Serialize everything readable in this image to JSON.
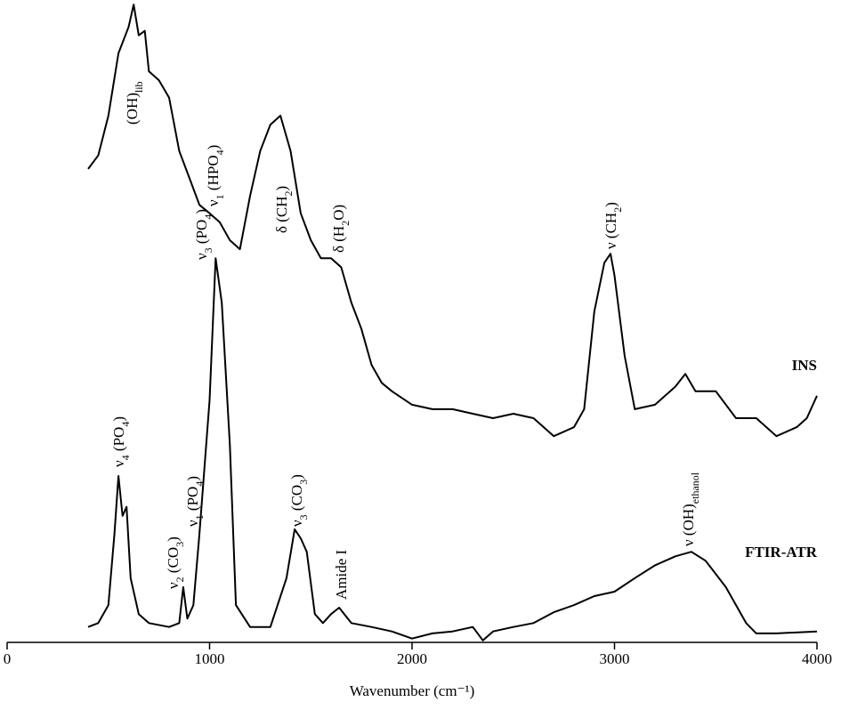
{
  "chart_data": {
    "type": "line",
    "xlabel": "Wavenumber (cm⁻¹)",
    "xlim": [
      0,
      4000
    ],
    "xticks": [
      0,
      1000,
      2000,
      3000,
      4000
    ],
    "ylim": [
      0,
      100
    ],
    "series": [
      {
        "name": "INS",
        "color": "#000000",
        "x": [
          400,
          450,
          500,
          550,
          600,
          625,
          650,
          680,
          700,
          750,
          800,
          850,
          900,
          950,
          1000,
          1050,
          1100,
          1150,
          1200,
          1250,
          1300,
          1350,
          1400,
          1450,
          1500,
          1550,
          1600,
          1650,
          1700,
          1750,
          1800,
          1850,
          1900,
          2000,
          2100,
          2200,
          2300,
          2400,
          2500,
          2600,
          2700,
          2800,
          2850,
          2900,
          2950,
          2980,
          3000,
          3050,
          3100,
          3200,
          3300,
          3350,
          3400,
          3500,
          3600,
          3700,
          3800,
          3900,
          3950,
          4000
        ],
        "values": [
          73.7,
          75.8,
          82.0,
          91.7,
          95.8,
          99.3,
          94.5,
          95.2,
          88.9,
          87.5,
          84.8,
          76.5,
          72.3,
          68.1,
          66.8,
          65.4,
          62.6,
          61.2,
          69.5,
          76.5,
          80.6,
          82.0,
          76.5,
          66.8,
          62.6,
          59.8,
          59.8,
          58.4,
          52.9,
          48.8,
          43.2,
          40.4,
          39.1,
          37.0,
          36.3,
          36.3,
          35.6,
          34.9,
          35.6,
          34.9,
          32.1,
          33.5,
          36.3,
          51.5,
          59.1,
          60.5,
          57.1,
          44.6,
          36.3,
          37.0,
          39.8,
          41.8,
          39.1,
          39.1,
          34.9,
          34.9,
          32.1,
          33.5,
          34.9,
          38.4
        ]
      },
      {
        "name": "FTIR-ATR",
        "color": "#000000",
        "x": [
          400,
          450,
          500,
          530,
          550,
          570,
          590,
          610,
          650,
          700,
          800,
          850,
          870,
          890,
          920,
          950,
          1000,
          1030,
          1060,
          1100,
          1130,
          1200,
          1300,
          1380,
          1420,
          1450,
          1480,
          1520,
          1560,
          1600,
          1640,
          1700,
          1800,
          1900,
          2000,
          2100,
          2200,
          2300,
          2350,
          2400,
          2500,
          2600,
          2700,
          2800,
          2900,
          3000,
          3100,
          3200,
          3300,
          3380,
          3450,
          3550,
          3650,
          3700,
          3800,
          4000
        ],
        "values": [
          2.4,
          3.0,
          5.8,
          16.9,
          25.9,
          19.7,
          21.1,
          10.0,
          4.4,
          3.0,
          2.4,
          3.0,
          8.6,
          3.7,
          5.8,
          16.9,
          37.7,
          59.8,
          52.9,
          30.7,
          5.8,
          2.4,
          2.4,
          10.0,
          17.6,
          16.2,
          14.1,
          4.4,
          3.0,
          4.4,
          5.4,
          3.0,
          2.4,
          1.7,
          0.6,
          1.4,
          1.7,
          2.4,
          0.3,
          1.7,
          2.4,
          3.0,
          4.7,
          5.8,
          7.2,
          7.9,
          10.0,
          12.0,
          13.4,
          14.1,
          12.7,
          8.6,
          3.0,
          1.4,
          1.4,
          1.7
        ]
      }
    ],
    "annotations": [
      [
        "(OH)",
        "lib"
      ],
      [
        "ν",
        "1",
        " (HPO",
        "4",
        ")"
      ],
      [
        "δ (CH",
        "2",
        ")"
      ],
      [
        "δ (H",
        "2",
        "O)"
      ],
      [
        "ν (CH",
        "2",
        ")"
      ],
      [
        "ν",
        "3",
        " (PO",
        "4",
        ")"
      ],
      [
        "ν",
        "4",
        " (PO",
        "4",
        ")"
      ],
      [
        "ν",
        "2",
        " (CO",
        "3",
        ")"
      ],
      [
        "ν",
        "1",
        " (PO",
        "4",
        ")"
      ],
      [
        "ν",
        "3",
        " (CO",
        "3",
        ")"
      ],
      [
        "Amide I"
      ],
      [
        "ν (OH)",
        "ethanol"
      ]
    ]
  }
}
